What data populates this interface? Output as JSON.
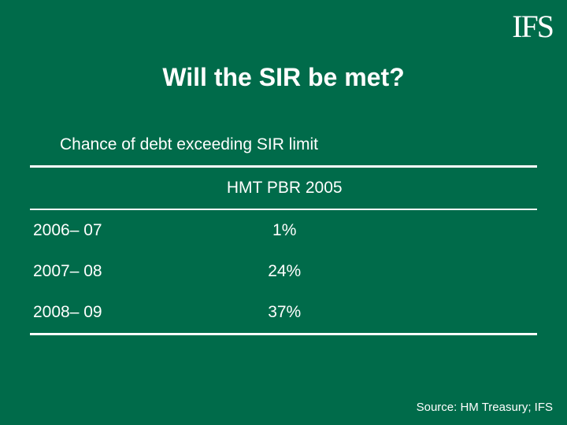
{
  "logo": "IFS",
  "title": "Will the SIR be met?",
  "subtitle": "Chance of debt exceeding SIR limit",
  "table": {
    "header": {
      "year": "",
      "col1": "HMT PBR 2005",
      "col2": ""
    },
    "rows": [
      {
        "year": "2006– 07",
        "val": "1%"
      },
      {
        "year": "2007– 08",
        "val": "24%"
      },
      {
        "year": "2008– 09",
        "val": "37%"
      }
    ]
  },
  "source": "Source: HM Treasury; IFS",
  "colors": {
    "background": "#006b4a",
    "text": "#ffffff",
    "rule": "#ffffff"
  },
  "typography": {
    "title_fontsize": 32,
    "body_fontsize": 21,
    "source_fontsize": 15,
    "logo_fontsize": 40
  }
}
